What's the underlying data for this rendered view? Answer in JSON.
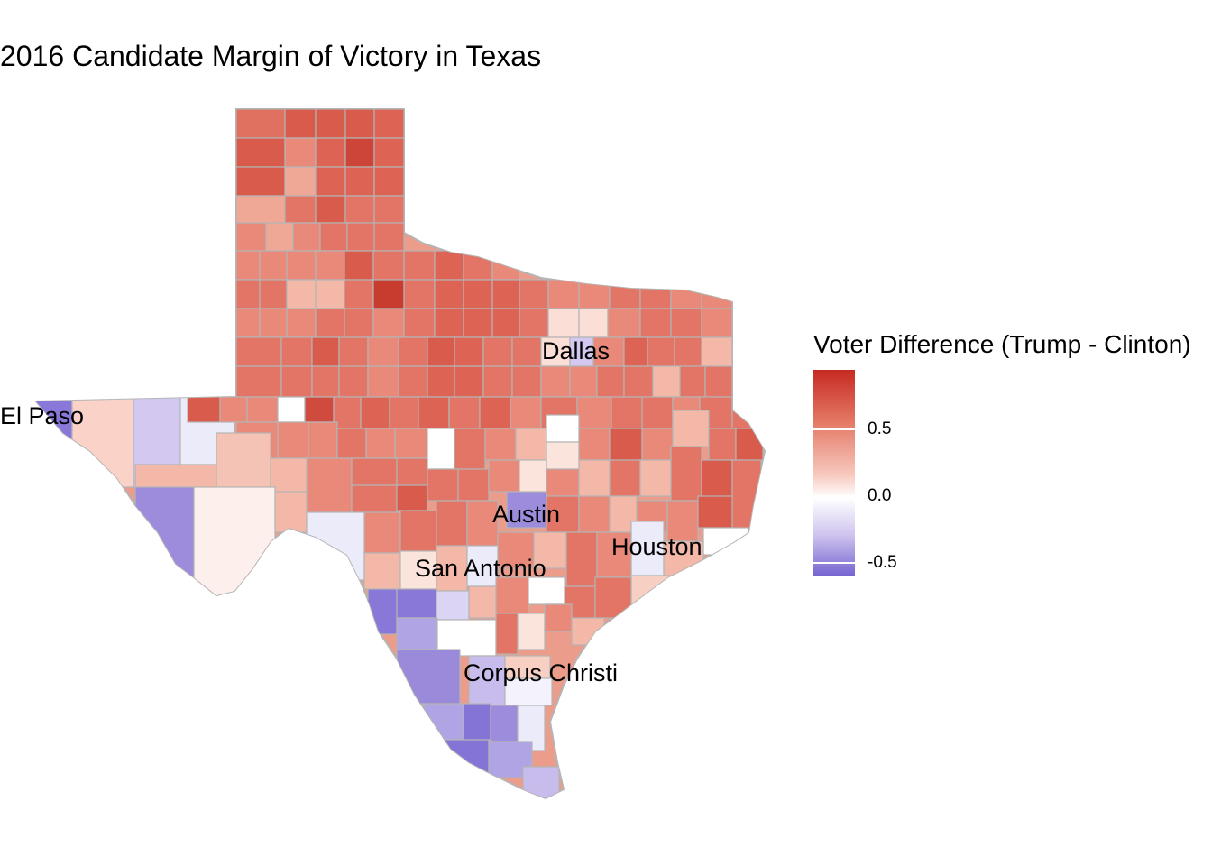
{
  "title": "2016 Candidate Margin of Victory in Texas",
  "map": {
    "region": "Texas",
    "metric": "Voter Difference (Trump - Clinton)",
    "cities": [
      {
        "name": "El Paso"
      },
      {
        "name": "Dallas"
      },
      {
        "name": "Austin"
      },
      {
        "name": "Houston"
      },
      {
        "name": "San Antonio"
      },
      {
        "name": "Corpus Christi"
      }
    ]
  },
  "legend": {
    "title": "Voter Difference (Trump - Clinton)",
    "labels": [
      "0.5",
      "0.0",
      "-0.5"
    ],
    "colors": {
      "high": "#c62a22",
      "mid": "#ffffff",
      "low": "#7462d0"
    }
  }
}
